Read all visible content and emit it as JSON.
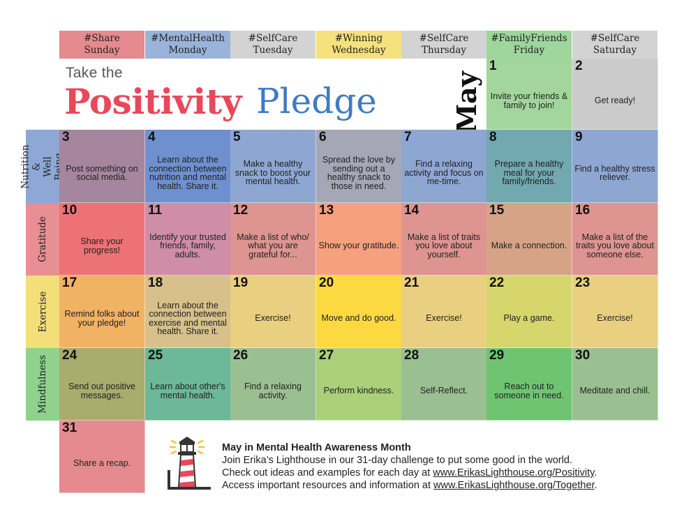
{
  "headers": [
    {
      "tag": "#Share",
      "day": "Sunday",
      "color": "#e58a8e"
    },
    {
      "tag": "#MentalHealth",
      "day": "Monday",
      "color": "#9ab3d9"
    },
    {
      "tag": "#SelfCare",
      "day": "Tuesday",
      "color": "#d3d3d3"
    },
    {
      "tag": "#Winning",
      "day": "Wednesday",
      "color": "#f5e27d"
    },
    {
      "tag": "#SelfCare",
      "day": "Thursday",
      "color": "#d3d3d3"
    },
    {
      "tag": "#FamilyFriends",
      "day": "Friday",
      "color": "#9fd69b"
    },
    {
      "tag": "#SelfCare",
      "day": "Saturday",
      "color": "#d3d3d3"
    }
  ],
  "rows": [
    {
      "label": "Nutrition &\nWell Being",
      "color": "#8ea8d6"
    },
    {
      "label": "Gratitude",
      "color": "#e88f93"
    },
    {
      "label": "Exercise",
      "color": "#f4de7a"
    },
    {
      "label": "Mindfulness",
      "color": "#8ed28e"
    }
  ],
  "title": {
    "take": "Take the",
    "positivity": "Positivity",
    "pledge": "Pledge",
    "month": "May"
  },
  "days": [
    {
      "n": "1",
      "text": "Invite your friends & family to join!",
      "color": "#a3d69c"
    },
    {
      "n": "2",
      "text": "Get ready!",
      "color": "#cbcbcb"
    },
    {
      "n": "3",
      "text": "Post something on social media.",
      "color": "#a6869e"
    },
    {
      "n": "4",
      "text": "Learn about the connection between nutrition and mental health. Share it.",
      "color": "#6e90cf"
    },
    {
      "n": "5",
      "text": "Make a healthy snack to boost your mental health.",
      "color": "#8ea6d2"
    },
    {
      "n": "6",
      "text": "Spread the love by sending out a healthy snack to those in need.",
      "color": "#a6a7b6"
    },
    {
      "n": "7",
      "text": "Find a relaxing activity and focus on me-time.",
      "color": "#8ea6d2"
    },
    {
      "n": "8",
      "text": "Prepare a healthy meal for your family/friends.",
      "color": "#72a8b0"
    },
    {
      "n": "9",
      "text": "Find a healthy stress reliever.",
      "color": "#8ea6d2"
    },
    {
      "n": "10",
      "text": "Share your progress!",
      "color": "#ed7276"
    },
    {
      "n": "11",
      "text": "Identify your trusted friends, family, adults.",
      "color": "#cf8da8"
    },
    {
      "n": "12",
      "text": "Make a list of who/ what you are grateful for...",
      "color": "#de9490"
    },
    {
      "n": "13",
      "text": "Show your gratitude.",
      "color": "#f6a07e"
    },
    {
      "n": "14",
      "text": "Make a list of traits you love about yourself.",
      "color": "#de9490"
    },
    {
      "n": "15",
      "text": "Make a connection.",
      "color": "#d6a387"
    },
    {
      "n": "16",
      "text": "Make a list of the traits you love about someone else.",
      "color": "#de9490"
    },
    {
      "n": "17",
      "text": "Remind folks about your pledge!",
      "color": "#f2b264"
    },
    {
      "n": "18",
      "text": "Learn about the connection between exercise and mental health. Share it.",
      "color": "#d8c08a"
    },
    {
      "n": "19",
      "text": "Exercise!",
      "color": "#e8d080"
    },
    {
      "n": "20",
      "text": "Move and do good.",
      "color": "#fcd940"
    },
    {
      "n": "21",
      "text": "Exercise!",
      "color": "#e8d080"
    },
    {
      "n": "22",
      "text": "Play a game.",
      "color": "#d6d66c"
    },
    {
      "n": "23",
      "text": "Exercise!",
      "color": "#e8d080"
    },
    {
      "n": "24",
      "text": "Send out positive messages.",
      "color": "#a8ac6c"
    },
    {
      "n": "25",
      "text": "Learn about other's mental health.",
      "color": "#6cb898"
    },
    {
      "n": "26",
      "text": "Find a relaxing activity.",
      "color": "#9ac092"
    },
    {
      "n": "27",
      "text": "Perform kindness.",
      "color": "#aad17a"
    },
    {
      "n": "28",
      "text": "Self-Reflect.",
      "color": "#9ac092"
    },
    {
      "n": "29",
      "text": "Reach out to someone in need.",
      "color": "#6fc472"
    },
    {
      "n": "30",
      "text": "Meditate and chill.",
      "color": "#9ac092"
    },
    {
      "n": "31",
      "text": "Share a recap.",
      "color": "#e58a8e"
    }
  ],
  "footer": {
    "title": "May in Mental Health Awareness Month",
    "line1": "Join Erika’s Lighthouse in our 31-day challenge to put some good in the world.",
    "line2_pre": "Check out ideas and examples for each day at ",
    "line2_url": "www.ErikasLighthouse.org/Positivity",
    "line2_post": ".",
    "line3_pre": "Access important resources and information at ",
    "line3_url": "www.ErikasLighthouse.org/Together",
    "line3_post": "."
  },
  "logo_icon": "lighthouse-icon"
}
